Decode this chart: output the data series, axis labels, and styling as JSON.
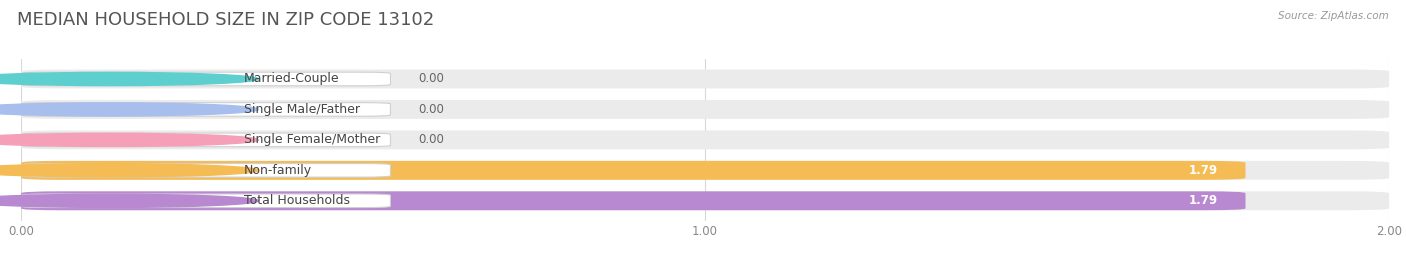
{
  "title": "Median Household Size in Zip Code 13102",
  "title_display": "MEDIAN HOUSEHOLD SIZE IN ZIP CODE 13102",
  "source": "Source: ZipAtlas.com",
  "categories": [
    "Married-Couple",
    "Single Male/Father",
    "Single Female/Mother",
    "Non-family",
    "Total Households"
  ],
  "values": [
    0.0,
    0.0,
    0.0,
    1.79,
    1.79
  ],
  "bar_colors": [
    "#5ecfcf",
    "#a8bfee",
    "#f5a0b8",
    "#f5bb55",
    "#b888d0"
  ],
  "xlim": [
    0,
    2.0
  ],
  "xticks": [
    0.0,
    1.0,
    2.0
  ],
  "xtick_labels": [
    "0.00",
    "1.00",
    "2.00"
  ],
  "title_fontsize": 13,
  "label_fontsize": 9,
  "value_fontsize": 8.5,
  "bar_height": 0.62,
  "background_color": "#ffffff",
  "bar_bg_color": "#ebebeb",
  "grid_color": "#d8d8d8"
}
